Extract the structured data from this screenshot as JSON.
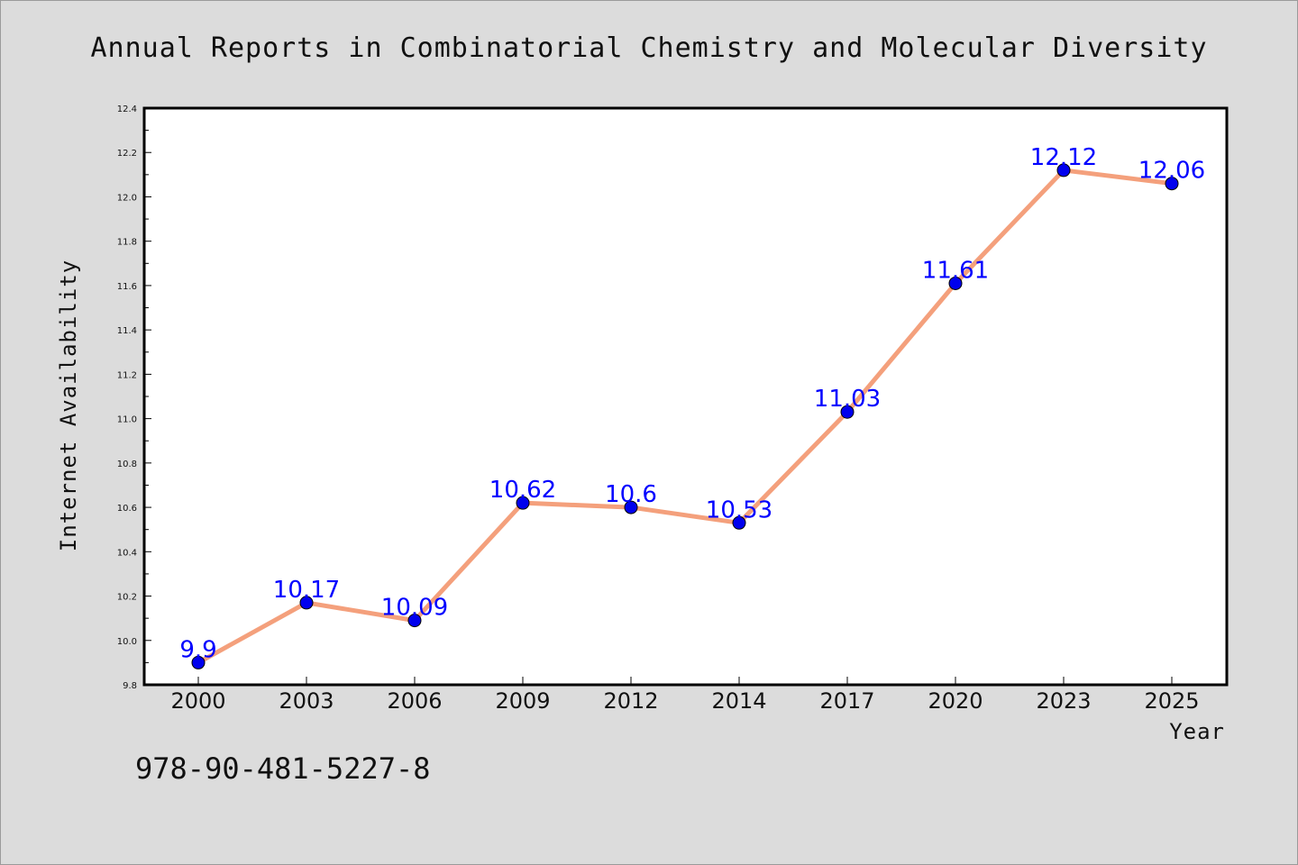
{
  "isbn": "978-90-481-5227-8",
  "colors": {
    "line": "#f4a07c",
    "marker": "#0000ee",
    "label": "#0000ff",
    "background": "#dcdcdc",
    "plot_bg": "#ffffff"
  },
  "chart_data": {
    "type": "line",
    "title": "Annual Reports in Combinatorial Chemistry and Molecular Diversity",
    "xlabel": "Year",
    "ylabel": "Internet Availability",
    "categories": [
      "2000",
      "2003",
      "2006",
      "2009",
      "2012",
      "2014",
      "2017",
      "2020",
      "2023",
      "2025"
    ],
    "series": [
      {
        "values": [
          9.9,
          10.17,
          10.09,
          10.62,
          10.6,
          10.53,
          11.03,
          11.61,
          12.12,
          12.06
        ]
      }
    ],
    "data_labels": [
      "9.9",
      "10.17",
      "10.09",
      "10.62",
      "10.6",
      "10.53",
      "11.03",
      "11.61",
      "12.12",
      "12.06"
    ],
    "ylim": [
      9.8,
      12.4
    ],
    "yticks": [
      "9.8",
      "10.0",
      "10.2",
      "10.4",
      "10.6",
      "10.8",
      "11.0",
      "11.2",
      "11.4",
      "11.6",
      "11.8",
      "12.0",
      "12.2",
      "12.4"
    ],
    "grid": false,
    "legend": "none"
  }
}
